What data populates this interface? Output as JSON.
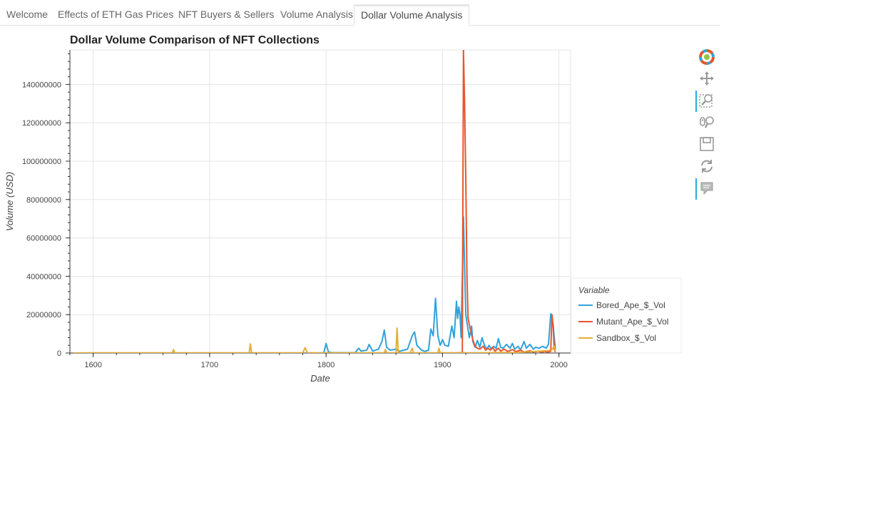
{
  "tabs": [
    {
      "label": "Welcome",
      "active": false
    },
    {
      "label": "Effects of ETH Gas Prices",
      "active": false
    },
    {
      "label": "NFT Buyers & Sellers",
      "active": false
    },
    {
      "label": "Volume Analysis",
      "active": false
    },
    {
      "label": "Dollar Volume Analysis",
      "active": true
    }
  ],
  "toolbar": {
    "tools": [
      {
        "icon": "bokeh-logo-icon",
        "active": false
      },
      {
        "icon": "pan-icon",
        "active": false
      },
      {
        "icon": "box-zoom-icon",
        "active": true
      },
      {
        "icon": "wheel-zoom-icon",
        "active": false
      },
      {
        "icon": "save-icon",
        "active": false
      },
      {
        "icon": "reset-icon",
        "active": false
      },
      {
        "icon": "hover-icon",
        "active": true
      }
    ]
  },
  "chart_data": {
    "type": "line",
    "title": "Dollar Volume Comparison of NFT Collections",
    "xlabel": "Date",
    "ylabel": "Volume (USD)",
    "xlim": [
      1580,
      2010
    ],
    "ylim": [
      0,
      158000000
    ],
    "xticks": [
      1600,
      1700,
      1800,
      1900,
      2000
    ],
    "yticks": [
      0,
      20000000,
      40000000,
      60000000,
      80000000,
      100000000,
      120000000,
      140000000
    ],
    "grid": true,
    "legend": {
      "title": "Variable",
      "position": "right"
    },
    "series": [
      {
        "name": "Bored_Ape_$_Vol",
        "color": "#30a2da",
        "points": [
          [
            1798,
            0
          ],
          [
            1800,
            5000000
          ],
          [
            1802,
            600000
          ],
          [
            1805,
            200000
          ],
          [
            1825,
            200000
          ],
          [
            1828,
            2500000
          ],
          [
            1830,
            1000000
          ],
          [
            1835,
            1500000
          ],
          [
            1837,
            4500000
          ],
          [
            1840,
            1000000
          ],
          [
            1845,
            2000000
          ],
          [
            1848,
            6000000
          ],
          [
            1850,
            12000000
          ],
          [
            1852,
            3000000
          ],
          [
            1855,
            1500000
          ],
          [
            1860,
            2000000
          ],
          [
            1863,
            900000
          ],
          [
            1870,
            2000000
          ],
          [
            1874,
            9000000
          ],
          [
            1876,
            11000000
          ],
          [
            1878,
            4000000
          ],
          [
            1882,
            1500000
          ],
          [
            1885,
            800000
          ],
          [
            1888,
            1500000
          ],
          [
            1890,
            12500000
          ],
          [
            1892,
            9000000
          ],
          [
            1894,
            28500000
          ],
          [
            1896,
            9000000
          ],
          [
            1898,
            4000000
          ],
          [
            1900,
            7000000
          ],
          [
            1902,
            4000000
          ],
          [
            1905,
            3500000
          ],
          [
            1908,
            14000000
          ],
          [
            1910,
            8000000
          ],
          [
            1912,
            27000000
          ],
          [
            1913,
            18000000
          ],
          [
            1914,
            24000000
          ],
          [
            1915,
            20000000
          ],
          [
            1916,
            8000000
          ],
          [
            1917,
            40000000
          ],
          [
            1918,
            71000000
          ],
          [
            1919,
            45000000
          ],
          [
            1920,
            20000000
          ],
          [
            1921,
            16000000
          ],
          [
            1923,
            8000000
          ],
          [
            1925,
            14000000
          ],
          [
            1926,
            6000000
          ],
          [
            1928,
            3000000
          ],
          [
            1930,
            6500000
          ],
          [
            1932,
            3000000
          ],
          [
            1934,
            8000000
          ],
          [
            1936,
            4000000
          ],
          [
            1938,
            2000000
          ],
          [
            1940,
            4000000
          ],
          [
            1942,
            2000000
          ],
          [
            1944,
            3500000
          ],
          [
            1946,
            2500000
          ],
          [
            1948,
            7500000
          ],
          [
            1950,
            3000000
          ],
          [
            1952,
            2500000
          ],
          [
            1955,
            4500000
          ],
          [
            1958,
            2500000
          ],
          [
            1960,
            5000000
          ],
          [
            1962,
            2000000
          ],
          [
            1965,
            3500000
          ],
          [
            1967,
            1500000
          ],
          [
            1970,
            6000000
          ],
          [
            1972,
            2500000
          ],
          [
            1975,
            4500000
          ],
          [
            1978,
            2000000
          ],
          [
            1980,
            3000000
          ],
          [
            1983,
            2500000
          ],
          [
            1986,
            3500000
          ],
          [
            1989,
            2500000
          ],
          [
            1991,
            4500000
          ],
          [
            1993,
            20500000
          ],
          [
            1995,
            15000000
          ],
          [
            1996,
            8000000
          ],
          [
            1997,
            2000000
          ]
        ]
      },
      {
        "name": "Mutant_Ape_$_Vol",
        "color": "#e8552f",
        "points": [
          [
            1910,
            0
          ],
          [
            1917,
            200000
          ],
          [
            1918,
            158000000
          ],
          [
            1919,
            130000000
          ],
          [
            1920,
            90000000
          ],
          [
            1921,
            40000000
          ],
          [
            1922,
            18000000
          ],
          [
            1924,
            12000000
          ],
          [
            1926,
            7000000
          ],
          [
            1928,
            3500000
          ],
          [
            1930,
            2500000
          ],
          [
            1932,
            2000000
          ],
          [
            1935,
            3500000
          ],
          [
            1937,
            1500000
          ],
          [
            1939,
            2500000
          ],
          [
            1941,
            1500000
          ],
          [
            1943,
            3000000
          ],
          [
            1945,
            1000000
          ],
          [
            1948,
            2500000
          ],
          [
            1950,
            1000000
          ],
          [
            1953,
            2000000
          ],
          [
            1956,
            800000
          ],
          [
            1960,
            1800000
          ],
          [
            1963,
            700000
          ],
          [
            1967,
            1500000
          ],
          [
            1970,
            500000
          ],
          [
            1975,
            1200000
          ],
          [
            1978,
            500000
          ],
          [
            1982,
            1000000
          ],
          [
            1985,
            500000
          ],
          [
            1988,
            800000
          ],
          [
            1991,
            400000
          ],
          [
            1993,
            1000000
          ],
          [
            1994,
            20000000
          ],
          [
            1995,
            14000000
          ],
          [
            1996,
            2000000
          ],
          [
            1997,
            500000
          ]
        ]
      },
      {
        "name": "Sandbox_$_Vol",
        "color": "#e5ae38",
        "points": [
          [
            1583,
            0
          ],
          [
            1600,
            100000
          ],
          [
            1626,
            100000
          ],
          [
            1627,
            0
          ],
          [
            1628,
            100000
          ],
          [
            1668,
            100000
          ],
          [
            1669,
            1800000
          ],
          [
            1670,
            100000
          ],
          [
            1683,
            100000
          ],
          [
            1684,
            0
          ],
          [
            1686,
            100000
          ],
          [
            1734,
            100000
          ],
          [
            1735,
            4800000
          ],
          [
            1736,
            100000
          ],
          [
            1780,
            100000
          ],
          [
            1782,
            2800000
          ],
          [
            1784,
            100000
          ],
          [
            1850,
            100000
          ],
          [
            1851,
            1800000
          ],
          [
            1852,
            100000
          ],
          [
            1860,
            100000
          ],
          [
            1861,
            13000000
          ],
          [
            1862,
            100000
          ],
          [
            1872,
            100000
          ],
          [
            1874,
            2500000
          ],
          [
            1875,
            100000
          ],
          [
            1896,
            100000
          ],
          [
            1897,
            2500000
          ],
          [
            1898,
            100000
          ],
          [
            1930,
            100000
          ],
          [
            1950,
            300000
          ],
          [
            1960,
            200000
          ],
          [
            1970,
            500000
          ],
          [
            1980,
            800000
          ],
          [
            1990,
            1200000
          ],
          [
            1994,
            1800000
          ],
          [
            1996,
            3500000
          ],
          [
            1997,
            800000
          ]
        ]
      }
    ]
  }
}
